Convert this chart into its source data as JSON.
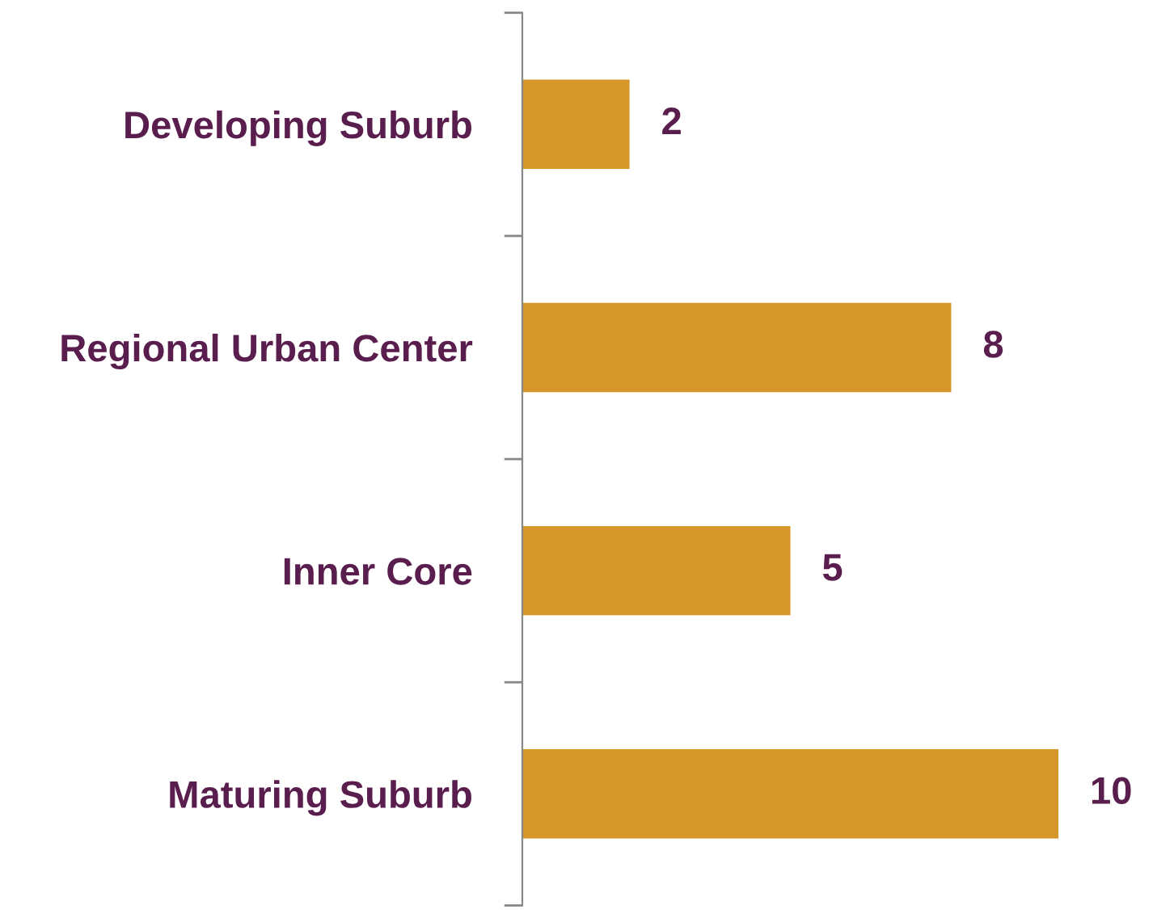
{
  "chart_data": {
    "type": "bar",
    "orientation": "horizontal",
    "categories": [
      "Developing Suburb",
      "Regional Urban Center",
      "Inner Core",
      "Maturing Suburb"
    ],
    "series": [
      {
        "color": "#d6962a",
        "values": [
          2,
          8,
          5,
          10
        ]
      }
    ],
    "data_labels": true,
    "grid": false,
    "legend": false,
    "tick_labels": "y"
  }
}
